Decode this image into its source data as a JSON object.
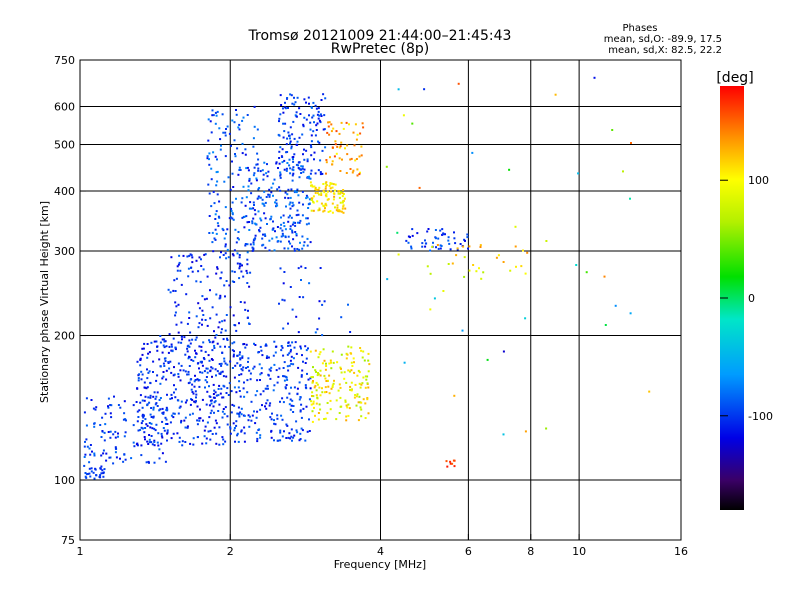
{
  "chart_data": {
    "type": "scatter",
    "title_line1": "Tromsø 20121009 21:44:00–21:45:43",
    "title_line2": "RwPretec (8p)",
    "xlabel": "Frequency [MHz]",
    "ylabel": "Stationary phase Virtual Height [km]",
    "xscale": "log",
    "yscale": "log",
    "xlim": [
      1,
      16
    ],
    "ylim": [
      75,
      750
    ],
    "xticks": [
      1,
      2,
      4,
      6,
      8,
      10,
      16
    ],
    "yticks": [
      75,
      100,
      200,
      300,
      400,
      500,
      600,
      750
    ],
    "grid_x": [
      2,
      4,
      6,
      8,
      10
    ],
    "grid_y": [
      100,
      200,
      300,
      400,
      500,
      600
    ],
    "legend": {
      "heading": "Phases",
      "line1": "mean, sd,O: -89.9, 17.5",
      "line2": "mean, sd,X:  82.5, 22.2"
    },
    "colorbar": {
      "label": "[deg]",
      "range": [
        -180,
        180
      ],
      "ticks": [
        100,
        0,
        -100
      ]
    },
    "clusters": [
      {
        "f": [
          1.0,
          1.12
        ],
        "h": [
          100,
          108
        ],
        "ph": [
          -110,
          -90
        ],
        "n": 30
      },
      {
        "f": [
          1.02,
          1.5
        ],
        "h": [
          108,
          150
        ],
        "ph": [
          -120,
          -80
        ],
        "n": 140
      },
      {
        "f": [
          1.3,
          2.0
        ],
        "h": [
          118,
          200
        ],
        "ph": [
          -125,
          -85
        ],
        "n": 340
      },
      {
        "f": [
          2.0,
          2.9
        ],
        "h": [
          120,
          195
        ],
        "ph": [
          -120,
          -80
        ],
        "n": 260
      },
      {
        "f": [
          1.5,
          2.2
        ],
        "h": [
          150,
          300
        ],
        "ph": [
          -125,
          -85
        ],
        "n": 200
      },
      {
        "f": [
          1.8,
          2.3
        ],
        "h": [
          290,
          600
        ],
        "ph": [
          -120,
          -70
        ],
        "n": 170
      },
      {
        "f": [
          2.2,
          2.9
        ],
        "h": [
          300,
          460
        ],
        "ph": [
          -115,
          -70
        ],
        "n": 200
      },
      {
        "f": [
          2.5,
          3.1
        ],
        "h": [
          430,
          640
        ],
        "ph": [
          -120,
          -80
        ],
        "n": 150
      },
      {
        "f": [
          2.9,
          3.4
        ],
        "h": [
          360,
          420
        ],
        "ph": [
          80,
          130
        ],
        "n": 100
      },
      {
        "f": [
          3.1,
          3.7
        ],
        "h": [
          430,
          560
        ],
        "ph": [
          100,
          160
        ],
        "n": 60
      },
      {
        "f": [
          2.9,
          3.8
        ],
        "h": [
          132,
          190
        ],
        "ph": [
          60,
          130
        ],
        "n": 170
      },
      {
        "f": [
          2.5,
          3.5
        ],
        "h": [
          200,
          280
        ],
        "ph": [
          -120,
          -80
        ],
        "n": 30
      },
      {
        "f": [
          4.5,
          6.0
        ],
        "h": [
          300,
          335
        ],
        "ph": [
          -120,
          -80
        ],
        "n": 50
      },
      {
        "f": [
          4.8,
          8.0
        ],
        "h": [
          260,
          310
        ],
        "ph": [
          60,
          140
        ],
        "n": 30
      },
      {
        "f": [
          5.3,
          5.8
        ],
        "h": [
          106,
          110
        ],
        "ph": [
          150,
          175
        ],
        "n": 8
      },
      {
        "f": [
          4.0,
          14.0
        ],
        "h": [
          120,
          700
        ],
        "ph": [
          -130,
          160
        ],
        "n": 40
      }
    ]
  }
}
